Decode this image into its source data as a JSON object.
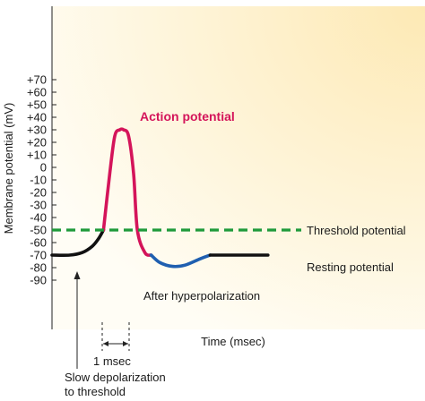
{
  "chart_data": {
    "type": "line",
    "title": "",
    "ylabel": "Membrane potential (mV)",
    "xlabel": "Time (msec)",
    "ylim": [
      -100,
      70
    ],
    "yticks": [
      70,
      60,
      50,
      40,
      30,
      20,
      10,
      0,
      -10,
      -20,
      -30,
      -40,
      -50,
      -60,
      -70,
      -80,
      -90
    ],
    "ytick_labels": [
      "+70",
      "+60",
      "+50",
      "+40",
      "+30",
      "+20",
      "+10",
      "0",
      "-10",
      "-20",
      "-30",
      "-40",
      "-50",
      "-60",
      "-70",
      "-80",
      "-90"
    ],
    "xlim": [
      0,
      10
    ],
    "series": [
      {
        "segment": "resting-and-slow-depolarization",
        "color": "#111111",
        "x": [
          0,
          0.7,
          1.2,
          1.6,
          1.85,
          2.05
        ],
        "y": [
          -70,
          -70,
          -68,
          -63,
          -57,
          -50
        ]
      },
      {
        "segment": "action-potential",
        "color": "#d4145a",
        "x": [
          2.05,
          2.3,
          2.5,
          2.7,
          2.85,
          3.05,
          3.25,
          3.4,
          3.7,
          3.95
        ],
        "y": [
          -50,
          -5,
          25,
          30,
          30,
          25,
          -5,
          -50,
          -68,
          -70
        ]
      },
      {
        "segment": "after-hyperpolarization",
        "color": "#1f5fb0",
        "x": [
          3.95,
          4.3,
          4.8,
          5.3,
          5.9,
          6.3
        ],
        "y": [
          -70,
          -76,
          -79,
          -78,
          -73,
          -70
        ]
      },
      {
        "segment": "return-to-rest",
        "color": "#111111",
        "x": [
          6.3,
          7.0,
          8.6
        ],
        "y": [
          -70,
          -70,
          -70
        ]
      }
    ],
    "threshold": {
      "y": -50,
      "color": "#1e9a3a",
      "style": "dashed",
      "label": "Threshold potential"
    },
    "labels": {
      "action_potential": "Action potential",
      "resting": "Resting potential",
      "after_hyper": "After hyperpolarization",
      "interval": "1 msec",
      "slow_depol_line1": "Slow depolarization",
      "slow_depol_line2": "to threshold"
    },
    "colors": {
      "background_start": "#fde9b4",
      "background_end": "#fffdf5"
    }
  }
}
